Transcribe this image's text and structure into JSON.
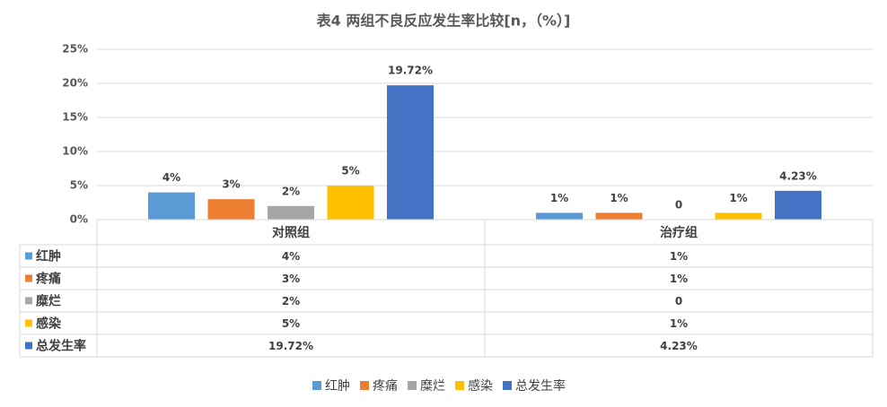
{
  "chart_data": {
    "type": "bar",
    "title": "表4  两组不良反应发生率比较[n，（%）]",
    "categories": [
      "对照组",
      "治疗组"
    ],
    "series": [
      {
        "name": "红肿",
        "color": "#5b9bd5",
        "values": [
          4,
          1
        ],
        "value_labels": [
          "4%",
          "1%"
        ]
      },
      {
        "name": "疼痛",
        "color": "#ed7d31",
        "values": [
          3,
          1
        ],
        "value_labels": [
          "3%",
          "1%"
        ]
      },
      {
        "name": "糜烂",
        "color": "#a5a5a5",
        "values": [
          2,
          0
        ],
        "value_labels": [
          "2%",
          "0"
        ]
      },
      {
        "name": "感染",
        "color": "#ffc000",
        "values": [
          5,
          1
        ],
        "value_labels": [
          "5%",
          "1%"
        ]
      },
      {
        "name": "总发生率",
        "color": "#4472c4",
        "values": [
          19.72,
          4.23
        ],
        "value_labels": [
          "19.72%",
          "4.23%"
        ]
      }
    ],
    "ylim": [
      0,
      25
    ],
    "yticks": [
      {
        "value": 0,
        "label": "0%"
      },
      {
        "value": 5,
        "label": "5%"
      },
      {
        "value": 10,
        "label": "10%"
      },
      {
        "value": 15,
        "label": "15%"
      },
      {
        "value": 20,
        "label": "20%"
      },
      {
        "value": 25,
        "label": "25%"
      }
    ],
    "grid": true,
    "legend": "bottom"
  }
}
